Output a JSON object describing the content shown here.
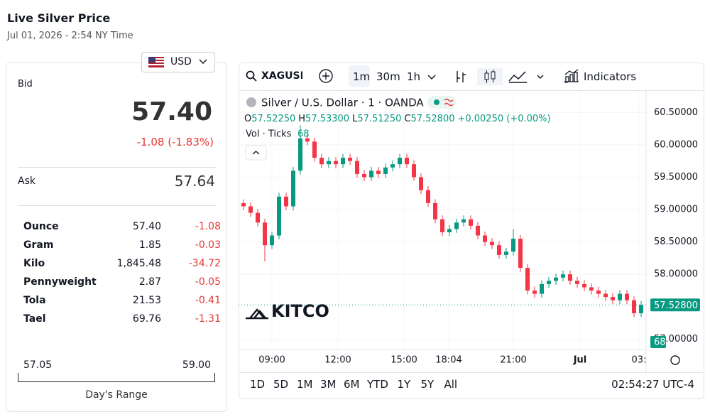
{
  "header": {
    "title": "Live Silver Price",
    "subtitle": "Jul 01, 2026 - 2:54 NY Time",
    "currency": "USD"
  },
  "quote": {
    "bid_label": "Bid",
    "bid": "57.40",
    "change": "-1.08 (-1.83%)",
    "ask_label": "Ask",
    "ask": "57.64"
  },
  "table": {
    "rows": [
      [
        "Ounce",
        "57.40",
        "-1.08"
      ],
      [
        "Gram",
        "1.85",
        "-0.03"
      ],
      [
        "Kilo",
        "1,845.48",
        "-34.72"
      ],
      [
        "Pennyweight",
        "2.87",
        "-0.05"
      ],
      [
        "Tola",
        "21.53",
        "-0.41"
      ],
      [
        "Tael",
        "69.76",
        "-1.31"
      ]
    ]
  },
  "range": {
    "low": "57.05",
    "high": "59.00",
    "label": "Day's Range"
  },
  "toolbar": {
    "symbol": "XAGUSD",
    "intervals": [
      "1m",
      "30m",
      "1h"
    ],
    "indicators": "Indicators"
  },
  "footer": {
    "periods": [
      "1D",
      "5D",
      "1M",
      "3M",
      "6M",
      "YTD",
      "1Y",
      "5Y",
      "All"
    ],
    "time": "02:54:27 UTC-4"
  },
  "watermark": "KITCO",
  "chart_data": {
    "type": "candlestick",
    "title": "Silver / U.S. Dollar · 1 · OANDA",
    "ohlc_legend": {
      "o_label": "O",
      "o": "57.52250",
      "h_label": "H",
      "h": "57.53300",
      "l_label": "L",
      "l": "57.51250",
      "c_label": "C",
      "c": "57.52800",
      "change": "+0.00250 (+0.00%)"
    },
    "volume_label": "Vol · Ticks",
    "volume": 68,
    "up_color": "#089981",
    "down_color": "#f23645",
    "opens": [
      59.1,
      59.05,
      58.95,
      58.8,
      58.45,
      58.6,
      59.2,
      59.05,
      59.6,
      60.1,
      60.05,
      59.8,
      59.7,
      59.75,
      59.7,
      59.8,
      59.75,
      59.55,
      59.5,
      59.6,
      59.55,
      59.65,
      59.7,
      59.8,
      59.7,
      59.5,
      59.3,
      59.1,
      58.85,
      58.65,
      58.7,
      58.8,
      58.85,
      58.75,
      58.6,
      58.5,
      58.45,
      58.3,
      58.35,
      58.55,
      58.1,
      57.75,
      57.7,
      57.85,
      57.9,
      57.95,
      58.0,
      57.9,
      57.85,
      57.8,
      57.75,
      57.7,
      57.65,
      57.6,
      57.7,
      57.6,
      57.4
    ],
    "highs": [
      59.16,
      59.11,
      59.01,
      58.86,
      58.66,
      59.26,
      59.26,
      59.66,
      60.3,
      60.16,
      60.11,
      59.86,
      59.81,
      59.81,
      59.86,
      59.86,
      59.81,
      59.61,
      59.66,
      59.66,
      59.71,
      59.76,
      59.86,
      59.86,
      59.76,
      59.56,
      59.36,
      59.16,
      58.91,
      58.76,
      58.86,
      58.91,
      58.91,
      58.81,
      58.66,
      58.56,
      58.51,
      58.41,
      58.7,
      58.61,
      58.16,
      57.81,
      57.91,
      57.96,
      58.01,
      58.06,
      58.06,
      57.96,
      57.91,
      57.86,
      57.81,
      57.76,
      57.71,
      57.76,
      57.76,
      57.66,
      57.59
    ],
    "lows": [
      58.99,
      58.89,
      58.74,
      58.2,
      58.39,
      58.54,
      58.99,
      58.99,
      59.54,
      59.99,
      59.74,
      59.64,
      59.64,
      59.64,
      59.64,
      59.69,
      59.49,
      59.44,
      59.44,
      59.49,
      59.49,
      59.59,
      59.64,
      59.64,
      59.44,
      59.24,
      59.04,
      58.79,
      58.59,
      58.59,
      58.64,
      58.74,
      58.69,
      58.54,
      58.44,
      58.39,
      58.24,
      58.24,
      58.29,
      58.04,
      57.69,
      57.64,
      57.64,
      57.79,
      57.84,
      57.89,
      57.84,
      57.79,
      57.74,
      57.69,
      57.64,
      57.59,
      57.54,
      57.54,
      57.54,
      57.34,
      57.34
    ],
    "closes": [
      59.05,
      58.95,
      58.8,
      58.45,
      58.6,
      59.2,
      59.05,
      59.6,
      60.1,
      60.05,
      59.8,
      59.7,
      59.75,
      59.7,
      59.8,
      59.75,
      59.55,
      59.5,
      59.6,
      59.55,
      59.65,
      59.7,
      59.8,
      59.7,
      59.5,
      59.3,
      59.1,
      58.85,
      58.65,
      58.7,
      58.8,
      58.85,
      58.75,
      58.6,
      58.5,
      58.45,
      58.3,
      58.35,
      58.55,
      58.1,
      57.75,
      57.7,
      57.85,
      57.9,
      57.95,
      58.0,
      57.9,
      57.85,
      57.8,
      57.75,
      57.7,
      57.65,
      57.6,
      57.7,
      57.6,
      57.4,
      57.53
    ],
    "ylim": [
      56.84,
      60.81
    ],
    "yticks": [
      {
        "value": 57,
        "label": "57.00000"
      },
      {
        "value": 58,
        "label": "58.00000"
      },
      {
        "value": 58.5,
        "label": "58.50000"
      },
      {
        "value": 59,
        "label": "59.00000"
      },
      {
        "value": 59.5,
        "label": "59.50000"
      },
      {
        "value": 60,
        "label": "60.00000"
      },
      {
        "value": 60.5,
        "label": "60.50000"
      }
    ],
    "xlim": [
      0,
      57
    ],
    "xticks": [
      {
        "value": 4.5,
        "label": "09:00"
      },
      {
        "value": 13.8,
        "label": "12:00"
      },
      {
        "value": 23.1,
        "label": "15:00"
      },
      {
        "value": 29.4,
        "label": "18:04"
      },
      {
        "value": 38.5,
        "label": "21:00"
      },
      {
        "value": 47.9,
        "label": "Jul"
      },
      {
        "value": 56.2,
        "label": "03:"
      }
    ],
    "last_price": {
      "value": 57.528,
      "label": "57.52800"
    }
  }
}
